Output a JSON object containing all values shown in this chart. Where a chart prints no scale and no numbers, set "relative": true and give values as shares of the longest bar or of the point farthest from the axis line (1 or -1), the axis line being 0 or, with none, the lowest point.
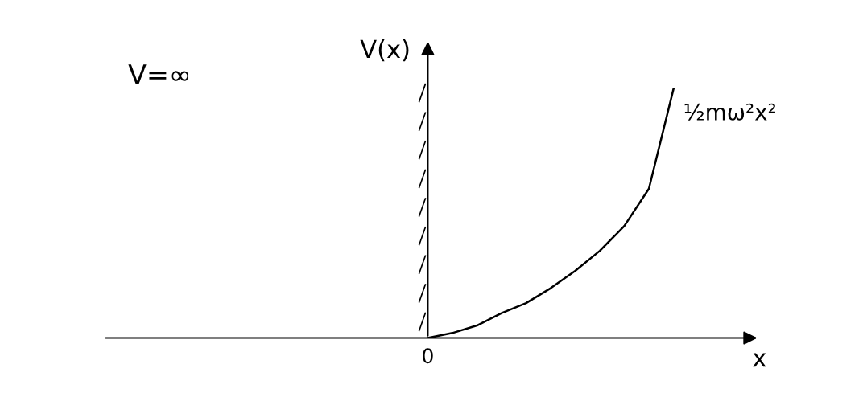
{
  "chart_data": {
    "type": "line",
    "relative": true,
    "categories": [
      null,
      null,
      null,
      null,
      null,
      null,
      null,
      null,
      null,
      null,
      null
    ],
    "values": [
      0,
      0.02,
      0.05,
      0.1,
      0.14,
      0.2,
      0.27,
      0.35,
      0.45,
      0.6,
      1
    ],
    "color": "#000000",
    "xlabel": "x",
    "ylabel": "V(x)",
    "annotations": [
      "V=∞",
      "½mω²x²",
      "0"
    ]
  }
}
